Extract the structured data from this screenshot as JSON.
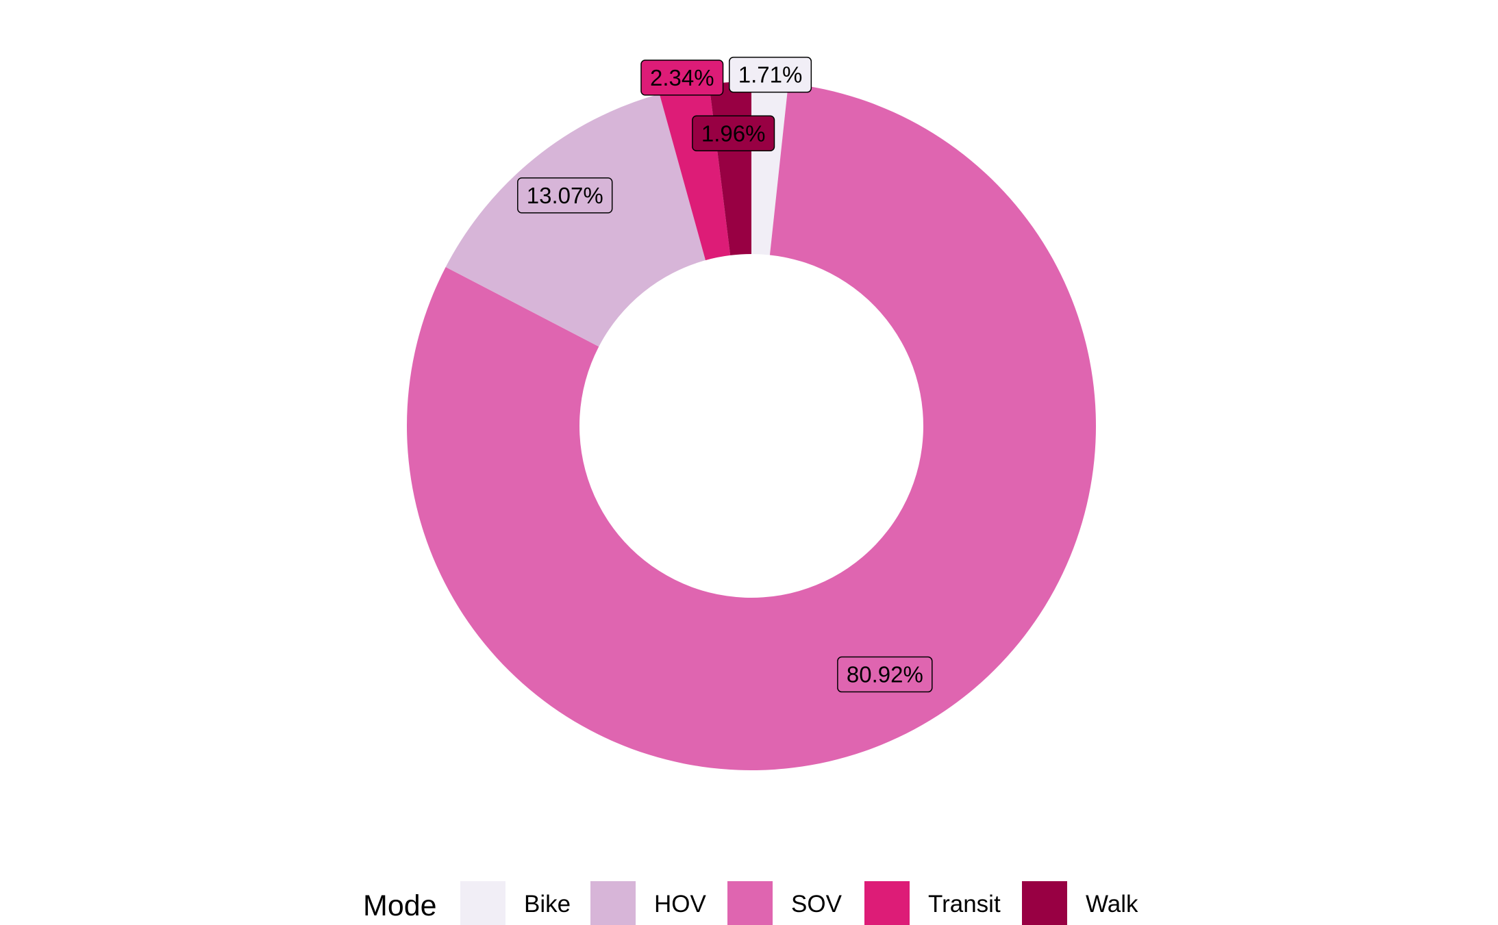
{
  "chart_data": {
    "type": "pie",
    "variant": "donut",
    "categories": [
      "Bike",
      "HOV",
      "SOV",
      "Transit",
      "Walk"
    ],
    "values": [
      1.71,
      13.07,
      80.92,
      2.34,
      1.96
    ],
    "value_labels": [
      "1.71%",
      "13.07%",
      "80.92%",
      "2.34%",
      "1.96%"
    ],
    "colors": [
      "#f1eef6",
      "#d7b5d8",
      "#df65b0",
      "#dd1c77",
      "#980043"
    ],
    "slice_order_clockwise_from_top": [
      "Bike",
      "SOV",
      "HOV",
      "Transit",
      "Walk"
    ],
    "legend": {
      "title": "Mode",
      "position": "bottom",
      "entries": [
        "Bike",
        "HOV",
        "SOV",
        "Transit",
        "Walk"
      ]
    },
    "title": "",
    "xlabel": "",
    "ylabel": ""
  }
}
